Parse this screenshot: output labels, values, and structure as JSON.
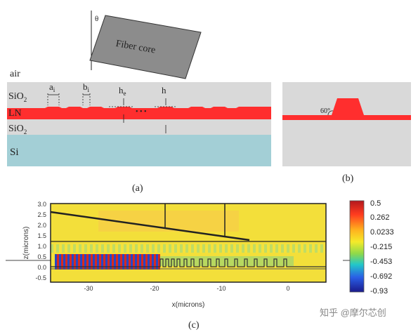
{
  "panel_a": {
    "theta": "θ",
    "fiber_label": "Fiber core",
    "air": "air",
    "sio2_top": "SiO",
    "sio2_top_sub": "2",
    "ln": "LN",
    "sio2_bottom": "SiO",
    "sio2_bottom_sub": "2",
    "si": "Si",
    "a_label": "a",
    "a_sub": "i",
    "b_label": "b",
    "b_sub": "i",
    "he_label": "h",
    "he_sub": "e",
    "h_label": "h",
    "dots": "• • •",
    "caption": "(a)",
    "colors": {
      "sio2": "#d9d9d9",
      "ln": "#ff2e2e",
      "si": "#a3cfd6",
      "fiber": "#8c8c8c"
    }
  },
  "panel_b": {
    "angle": "60°",
    "caption": "(b)"
  },
  "panel_c": {
    "ylabel": "z(microns)",
    "xlabel": "x(microns)",
    "y_ticks": [
      "3.0",
      "2.5",
      "2.0",
      "1.5",
      "1.0",
      "0.5",
      "0.0",
      "-0.5"
    ],
    "x_ticks": [
      "-30",
      "-20",
      "-10",
      "0"
    ],
    "colorbar_ticks": [
      "0.5",
      "0.262",
      "0.0233",
      "-0.215",
      "-0.453",
      "-0.692",
      "-0.93"
    ],
    "caption": "(c)",
    "watermark": "知乎 @摩尔芯创"
  }
}
